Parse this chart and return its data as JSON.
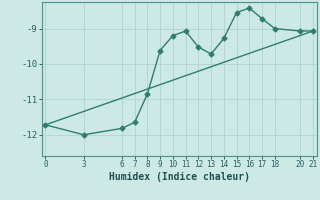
{
  "xlabel": "Humidex (Indice chaleur)",
  "background_color": "#cce9e6",
  "line_color": "#2e7d6e",
  "grid_color": "#b0d4d0",
  "spine_color": "#4a9090",
  "x_ticks": [
    0,
    3,
    6,
    7,
    8,
    9,
    10,
    11,
    12,
    13,
    14,
    15,
    16,
    17,
    18,
    20,
    21
  ],
  "xlim": [
    -0.3,
    21.3
  ],
  "ylim": [
    -12.6,
    -8.25
  ],
  "y_ticks": [
    -12,
    -11,
    -10,
    -9
  ],
  "curve1_x": [
    0,
    3,
    6,
    7,
    8,
    9,
    10,
    11,
    12,
    13,
    14,
    15,
    16,
    17,
    18,
    20,
    21
  ],
  "curve1_y": [
    -11.72,
    -12.0,
    -11.82,
    -11.65,
    -10.85,
    -9.62,
    -9.2,
    -9.07,
    -9.52,
    -9.72,
    -9.28,
    -8.55,
    -8.42,
    -8.72,
    -9.0,
    -9.07,
    -9.07
  ],
  "curve2_x": [
    0,
    21
  ],
  "curve2_y": [
    -11.72,
    -9.07
  ],
  "marker": "D",
  "markersize": 2.5,
  "linewidth": 1.0
}
